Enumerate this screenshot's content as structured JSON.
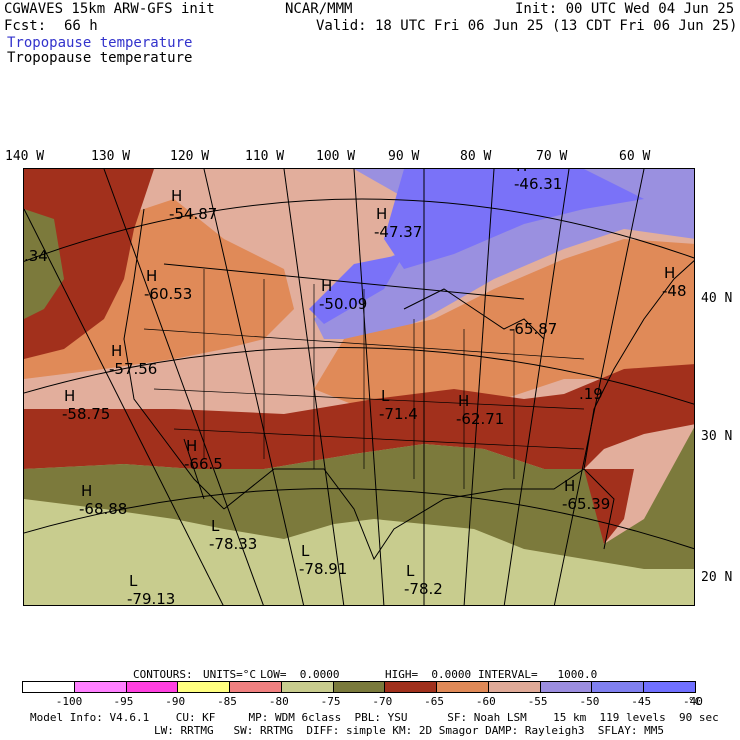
{
  "header": {
    "model": "CGWAVES 15km ARW-GFS init",
    "center": "NCAR/MMM",
    "init": "Init: 00 UTC Wed 04 Jun 25",
    "fcst_label": "Fcst:",
    "fcst_value": "66 h",
    "valid": "Valid: 18 UTC Fri 06 Jun 25 (13 CDT Fri 06 Jun 25)",
    "field_title_1": "Tropopause temperature",
    "field_title_2": "Tropopause temperature"
  },
  "longitudes": [
    "140 W",
    "130 W",
    "120 W",
    "110 W",
    "100 W",
    "90 W",
    "80 W",
    "70 W",
    "60 W"
  ],
  "latitudes": [
    "40 N",
    "30 N",
    "20 N"
  ],
  "map_labels": [
    {
      "id": "l1",
      "letter": "",
      "value": ".34"
    },
    {
      "id": "h1",
      "letter": "H",
      "value": "-54.87"
    },
    {
      "id": "h2",
      "letter": "H",
      "value": "-47.37"
    },
    {
      "id": "h3",
      "letter": "H",
      "value": "-46.31"
    },
    {
      "id": "h4",
      "letter": "H",
      "value": "-60.53"
    },
    {
      "id": "h5",
      "letter": "H",
      "value": "-50.09"
    },
    {
      "id": "h6",
      "letter": "H",
      "value": "-48"
    },
    {
      "id": "h7",
      "letter": "",
      "value": "-65.87"
    },
    {
      "id": "h8",
      "letter": "H",
      "value": "-57.56"
    },
    {
      "id": "h9",
      "letter": "H",
      "value": "-58.75"
    },
    {
      "id": "l2",
      "letter": "L",
      "value": "-71.4"
    },
    {
      "id": "h10",
      "letter": "H",
      "value": "-62.71"
    },
    {
      "id": "l3",
      "letter": "",
      "value": ".19"
    },
    {
      "id": "h11",
      "letter": "H",
      "value": "-66.5"
    },
    {
      "id": "h12",
      "letter": "H",
      "value": "-68.88"
    },
    {
      "id": "h13",
      "letter": "H",
      "value": "-65.39"
    },
    {
      "id": "l4",
      "letter": "L",
      "value": "-78.33"
    },
    {
      "id": "l5",
      "letter": "L",
      "value": "-78.91"
    },
    {
      "id": "l6",
      "letter": "L",
      "value": "-78.2"
    },
    {
      "id": "l7",
      "letter": "L",
      "value": "-79.13"
    }
  ],
  "contours": {
    "label": "CONTOURS:",
    "units": "UNITS=°C",
    "low": "LOW=  0.0000",
    "high": "HIGH=  0.0000",
    "interval": "INTERVAL=   1000.0"
  },
  "colorbar": {
    "ticks": [
      "-100",
      "-95",
      "-90",
      "-85",
      "-80",
      "-75",
      "-70",
      "-65",
      "-60",
      "-55",
      "-50",
      "-45",
      "-40"
    ],
    "unit": "°C",
    "colors": [
      "#ffffff",
      "#ff80ff",
      "#ff40e0",
      "#ffff80",
      "#f08080",
      "#c8cc8e",
      "#7a7a3c",
      "#a0301c",
      "#e08a58",
      "#e0aa98",
      "#9c8ee0",
      "#8080f0",
      "#7070ff"
    ]
  },
  "footer": {
    "line1": "Model Info: V4.6.1    CU: KF     MP: WDM 6class  PBL: YSU      SF: Noah LSM    15 km  119 levels  90 sec",
    "line2": "LW: RRTMG   SW: RRTMG  DIFF: simple KM: 2D Smagor DAMP: Rayleigh3  SFLAY: MM5"
  },
  "colors": {
    "pink_light": "#e2ae9c",
    "salmon": "#e08a58",
    "brick": "#a2301c",
    "olive": "#7c7a3c",
    "khaki": "#c8cc8e",
    "lavender": "#9a90e0",
    "blue": "#7a72f8"
  }
}
